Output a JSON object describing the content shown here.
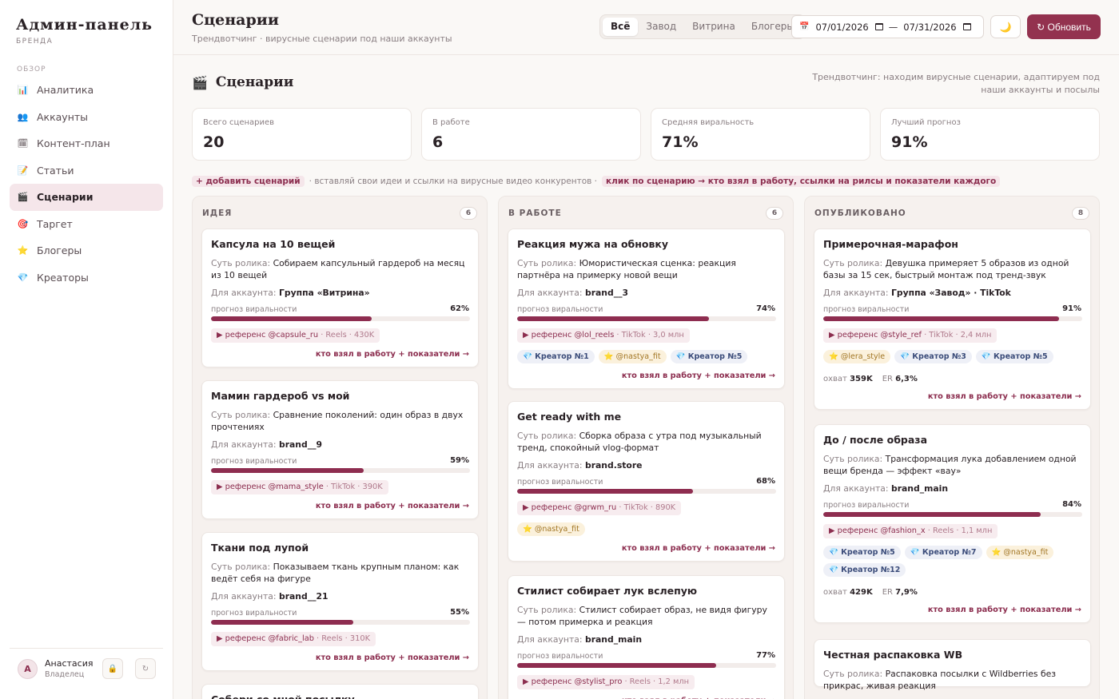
{
  "sidebar": {
    "brand_title": "Админ-панель",
    "brand_sub": "БРЕНДА",
    "section_label": "ОБЗОР",
    "items": [
      {
        "icon": "📊",
        "label": "Аналитика"
      },
      {
        "icon": "👥",
        "label": "Аккаунты"
      },
      {
        "icon": "🗓",
        "label": "Контент-план"
      },
      {
        "icon": "📝",
        "label": "Статьи"
      },
      {
        "icon": "🎬",
        "label": "Сценарии"
      },
      {
        "icon": "🎯",
        "label": "Таргет"
      },
      {
        "icon": "⭐",
        "label": "Блогеры"
      },
      {
        "icon": "💎",
        "label": "Креаторы"
      }
    ],
    "active_index": 4,
    "user": {
      "initial": "А",
      "name": "Анастасия",
      "role": "Владелец"
    },
    "lock_icon": "🔒",
    "refresh_icon": "↻"
  },
  "header": {
    "title": "Сценарии",
    "subtitle": "Трендвотчинг · вирусные сценарии под наши аккаунты",
    "filters": [
      "Всё",
      "Завод",
      "Витрина",
      "Блогеры"
    ],
    "active_filter": 0,
    "date_icon": "📅",
    "date_from": "07/01/2026",
    "date_to": "07/31/2026",
    "date_sep": "—",
    "theme_icon": "🌙",
    "refresh_label": "↻ Обновить"
  },
  "section": {
    "icon": "🎬",
    "title": "Сценарии",
    "note": "Трендвотчинг: находим вирусные сценарии, адаптируем под наши аккаунты и посылы"
  },
  "stats": [
    {
      "label": "Всего сценариев",
      "value": "20"
    },
    {
      "label": "В работе",
      "value": "6"
    },
    {
      "label": "Средняя виральность",
      "value": "71%"
    },
    {
      "label": "Лучший прогноз",
      "value": "91%"
    }
  ],
  "hint": {
    "add": "+ добавить сценарий",
    "text": "· вставляй свои идеи и ссылки на вирусные видео конкурентов ·",
    "click": "клик по сценарию → кто взял в работу, ссылки на рилсы и показатели каждого"
  },
  "labels": {
    "desc": "Суть ролика:",
    "account": "Для аккаунта:",
    "viral": "прогноз виральности",
    "ref": "▶ референс",
    "link": "кто взял в работу + показатели →",
    "reach": "охват",
    "er": "ER"
  },
  "columns": [
    {
      "title": "ИДЕЯ",
      "count": "6",
      "cards": [
        {
          "title": "Капсула на 10 вещей",
          "desc": "Собираем капсульный гардероб на месяц из 10 вещей",
          "account": "Группа «Витрина»",
          "viral": 62,
          "ref_handle": "@capsule_ru",
          "ref_meta": "· Reels · 430K",
          "tags": [],
          "reach": "",
          "er": ""
        },
        {
          "title": "Мамин гардероб vs мой",
          "desc": "Сравнение поколений: один образ в двух прочтениях",
          "account": "brand__9",
          "viral": 59,
          "ref_handle": "@mama_style",
          "ref_meta": "· TikTok · 390K",
          "tags": [],
          "reach": "",
          "er": ""
        },
        {
          "title": "Ткани под лупой",
          "desc": "Показываем ткань крупным планом: как ведёт себя на фигуре",
          "account": "brand__21",
          "viral": 55,
          "ref_handle": "@fabric_lab",
          "ref_meta": "· Reels · 310K",
          "tags": [],
          "reach": "",
          "er": ""
        },
        {
          "title": "Собери со мной посылку",
          "desc": "",
          "account": "",
          "viral": 0,
          "ref_handle": "",
          "ref_meta": "",
          "tags": [],
          "reach": "",
          "er": ""
        }
      ]
    },
    {
      "title": "В РАБОТЕ",
      "count": "6",
      "cards": [
        {
          "title": "Реакция мужа на обновку",
          "desc": "Юмористическая сценка: реакция партнёра на примерку новой вещи",
          "account": "brand__3",
          "viral": 74,
          "ref_handle": "@lol_reels",
          "ref_meta": "· TikTok · 3,0 млн",
          "tags": [
            {
              "kind": "creator",
              "icon": "💎",
              "label": "Креатор №1"
            },
            {
              "kind": "blogger",
              "icon": "⭐",
              "label": "@nastya_fit"
            },
            {
              "kind": "creator",
              "icon": "💎",
              "label": "Креатор №5"
            }
          ],
          "reach": "",
          "er": ""
        },
        {
          "title": "Get ready with me",
          "desc": "Сборка образа с утра под музыкальный тренд, спокойный vlog-формат",
          "account": "brand.store",
          "viral": 68,
          "ref_handle": "@grwm_ru",
          "ref_meta": "· TikTok · 890K",
          "tags": [
            {
              "kind": "blogger",
              "icon": "⭐",
              "label": "@nastya_fit"
            }
          ],
          "reach": "",
          "er": ""
        },
        {
          "title": "Стилист собирает лук вслепую",
          "desc": "Стилист собирает образ, не видя фигуру — потом примерка и реакция",
          "account": "brand_main",
          "viral": 77,
          "ref_handle": "@stylist_pro",
          "ref_meta": "· Reels · 1,2 млн",
          "tags": [],
          "reach": "",
          "er": ""
        }
      ]
    },
    {
      "title": "ОПУБЛИКОВАНО",
      "count": "8",
      "cards": [
        {
          "title": "Примерочная-марафон",
          "desc": "Девушка примеряет 5 образов из одной базы за 15 сек, быстрый монтаж под тренд-звук",
          "account": "Группа «Завод» · TikTok",
          "viral": 91,
          "ref_handle": "@style_ref",
          "ref_meta": "· TikTok · 2,4 млн",
          "tags": [
            {
              "kind": "blogger",
              "icon": "⭐",
              "label": "@lera_style"
            },
            {
              "kind": "creator",
              "icon": "💎",
              "label": "Креатор №3"
            },
            {
              "kind": "creator",
              "icon": "💎",
              "label": "Креатор №5"
            }
          ],
          "reach": "359K",
          "er": "6,3%"
        },
        {
          "title": "До / после образа",
          "desc": "Трансформация лука добавлением одной вещи бренда — эффект «вау»",
          "account": "brand_main",
          "viral": 84,
          "ref_handle": "@fashion_x",
          "ref_meta": "· Reels · 1,1 млн",
          "tags": [
            {
              "kind": "creator",
              "icon": "💎",
              "label": "Креатор №5"
            },
            {
              "kind": "creator",
              "icon": "💎",
              "label": "Креатор №7"
            },
            {
              "kind": "blogger",
              "icon": "⭐",
              "label": "@nastya_fit"
            },
            {
              "kind": "creator",
              "icon": "💎",
              "label": "Креатор №12"
            }
          ],
          "reach": "429K",
          "er": "7,9%"
        },
        {
          "title": "Честная распаковка WB",
          "desc": "Распаковка посылки с Wildberries без прикрас, живая реакция",
          "account": "",
          "viral": 0,
          "ref_handle": "",
          "ref_meta": "",
          "tags": [],
          "reach": "",
          "er": ""
        }
      ]
    }
  ],
  "colors": {
    "accent": "#93324f",
    "bar": "#8e2d50",
    "chip_bg": "#f7ecef"
  }
}
